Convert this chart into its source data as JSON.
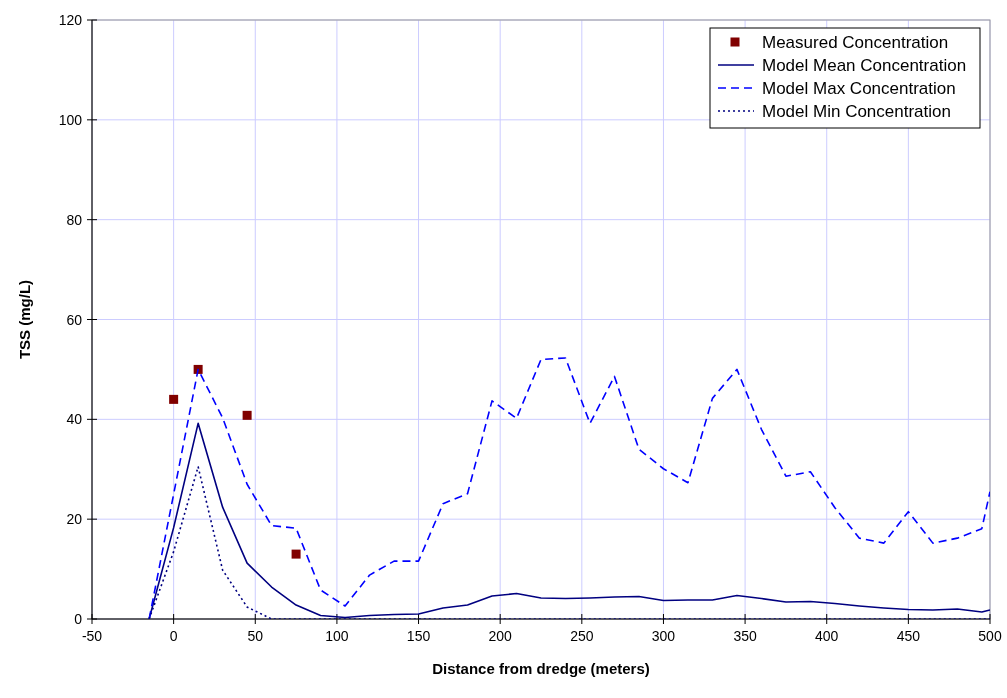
{
  "chart_data": {
    "type": "line",
    "xlabel": "Distance from dredge (meters)",
    "ylabel": "TSS (mg/L)",
    "xlim": [
      -50,
      500
    ],
    "xticks": [
      -50,
      0,
      50,
      100,
      150,
      200,
      250,
      300,
      350,
      400,
      450,
      500
    ],
    "ylim": [
      0,
      120
    ],
    "yticks": [
      0,
      20,
      40,
      60,
      80,
      100,
      120
    ],
    "grid": true,
    "legend": "top right",
    "series": [
      {
        "name": "Measured Concentration",
        "type": "scatter",
        "marker": "square",
        "color": "#800000",
        "x": [
          0,
          15,
          45,
          75
        ],
        "values": [
          44,
          50,
          40.8,
          13
        ]
      },
      {
        "name": "Model Mean Concentration",
        "line_style": "solid",
        "color": "#000080",
        "x": [
          -15,
          0,
          15,
          30,
          45,
          60,
          75,
          90,
          105,
          120,
          135,
          150,
          165,
          180,
          195,
          210,
          225,
          240,
          255,
          270,
          285,
          300,
          315,
          330,
          345,
          360,
          375,
          390,
          405,
          420,
          435,
          450,
          465,
          480,
          495,
          500
        ],
        "values": [
          0,
          18.3,
          39.2,
          22.4,
          11.2,
          6.4,
          2.8,
          0.7,
          0.3,
          0.7,
          0.9,
          1.0,
          2.2,
          2.8,
          4.6,
          5.1,
          4.2,
          4.1,
          4.2,
          4.4,
          4.5,
          3.7,
          3.8,
          3.8,
          4.7,
          4.1,
          3.4,
          3.5,
          3.1,
          2.6,
          2.2,
          1.9,
          1.8,
          2.0,
          1.4,
          1.8
        ]
      },
      {
        "name": "Model Max Concentration",
        "line_style": "dashed",
        "color": "#0000ff",
        "x": [
          -15,
          0,
          15,
          30,
          45,
          60,
          75,
          90,
          105,
          120,
          135,
          150,
          165,
          180,
          195,
          210,
          225,
          240,
          255,
          270,
          285,
          300,
          315,
          330,
          345,
          360,
          375,
          390,
          405,
          420,
          435,
          450,
          465,
          480,
          495,
          500
        ],
        "values": [
          0,
          25,
          50,
          40.3,
          27,
          18.7,
          18.2,
          5.8,
          2.6,
          8.8,
          11.6,
          11.6,
          23.1,
          25.1,
          43.7,
          40.2,
          52,
          52.3,
          39.2,
          48.6,
          34,
          30.1,
          27.3,
          44.2,
          50,
          38,
          28.6,
          29.5,
          22.3,
          16.2,
          15.2,
          21.5,
          15.2,
          16.2,
          18.1,
          25.5
        ]
      },
      {
        "name": "Model Min Concentration",
        "line_style": "dotted",
        "color": "#000080",
        "x": [
          -15,
          0,
          15,
          30,
          45,
          60,
          75,
          90,
          105,
          120,
          135,
          150,
          165,
          180,
          195,
          210,
          225,
          240,
          255,
          270,
          285,
          300,
          315,
          330,
          345,
          360,
          375,
          390,
          405,
          420,
          435,
          450,
          465,
          480,
          495,
          500
        ],
        "values": [
          0,
          13.5,
          30.5,
          9.8,
          2.4,
          0,
          0,
          0,
          0,
          0,
          0,
          0,
          0,
          0,
          0,
          0,
          0,
          0,
          0,
          0,
          0,
          0,
          0,
          0,
          0,
          0,
          0,
          0,
          0,
          0,
          0,
          0,
          0,
          0,
          0,
          0
        ]
      }
    ]
  }
}
